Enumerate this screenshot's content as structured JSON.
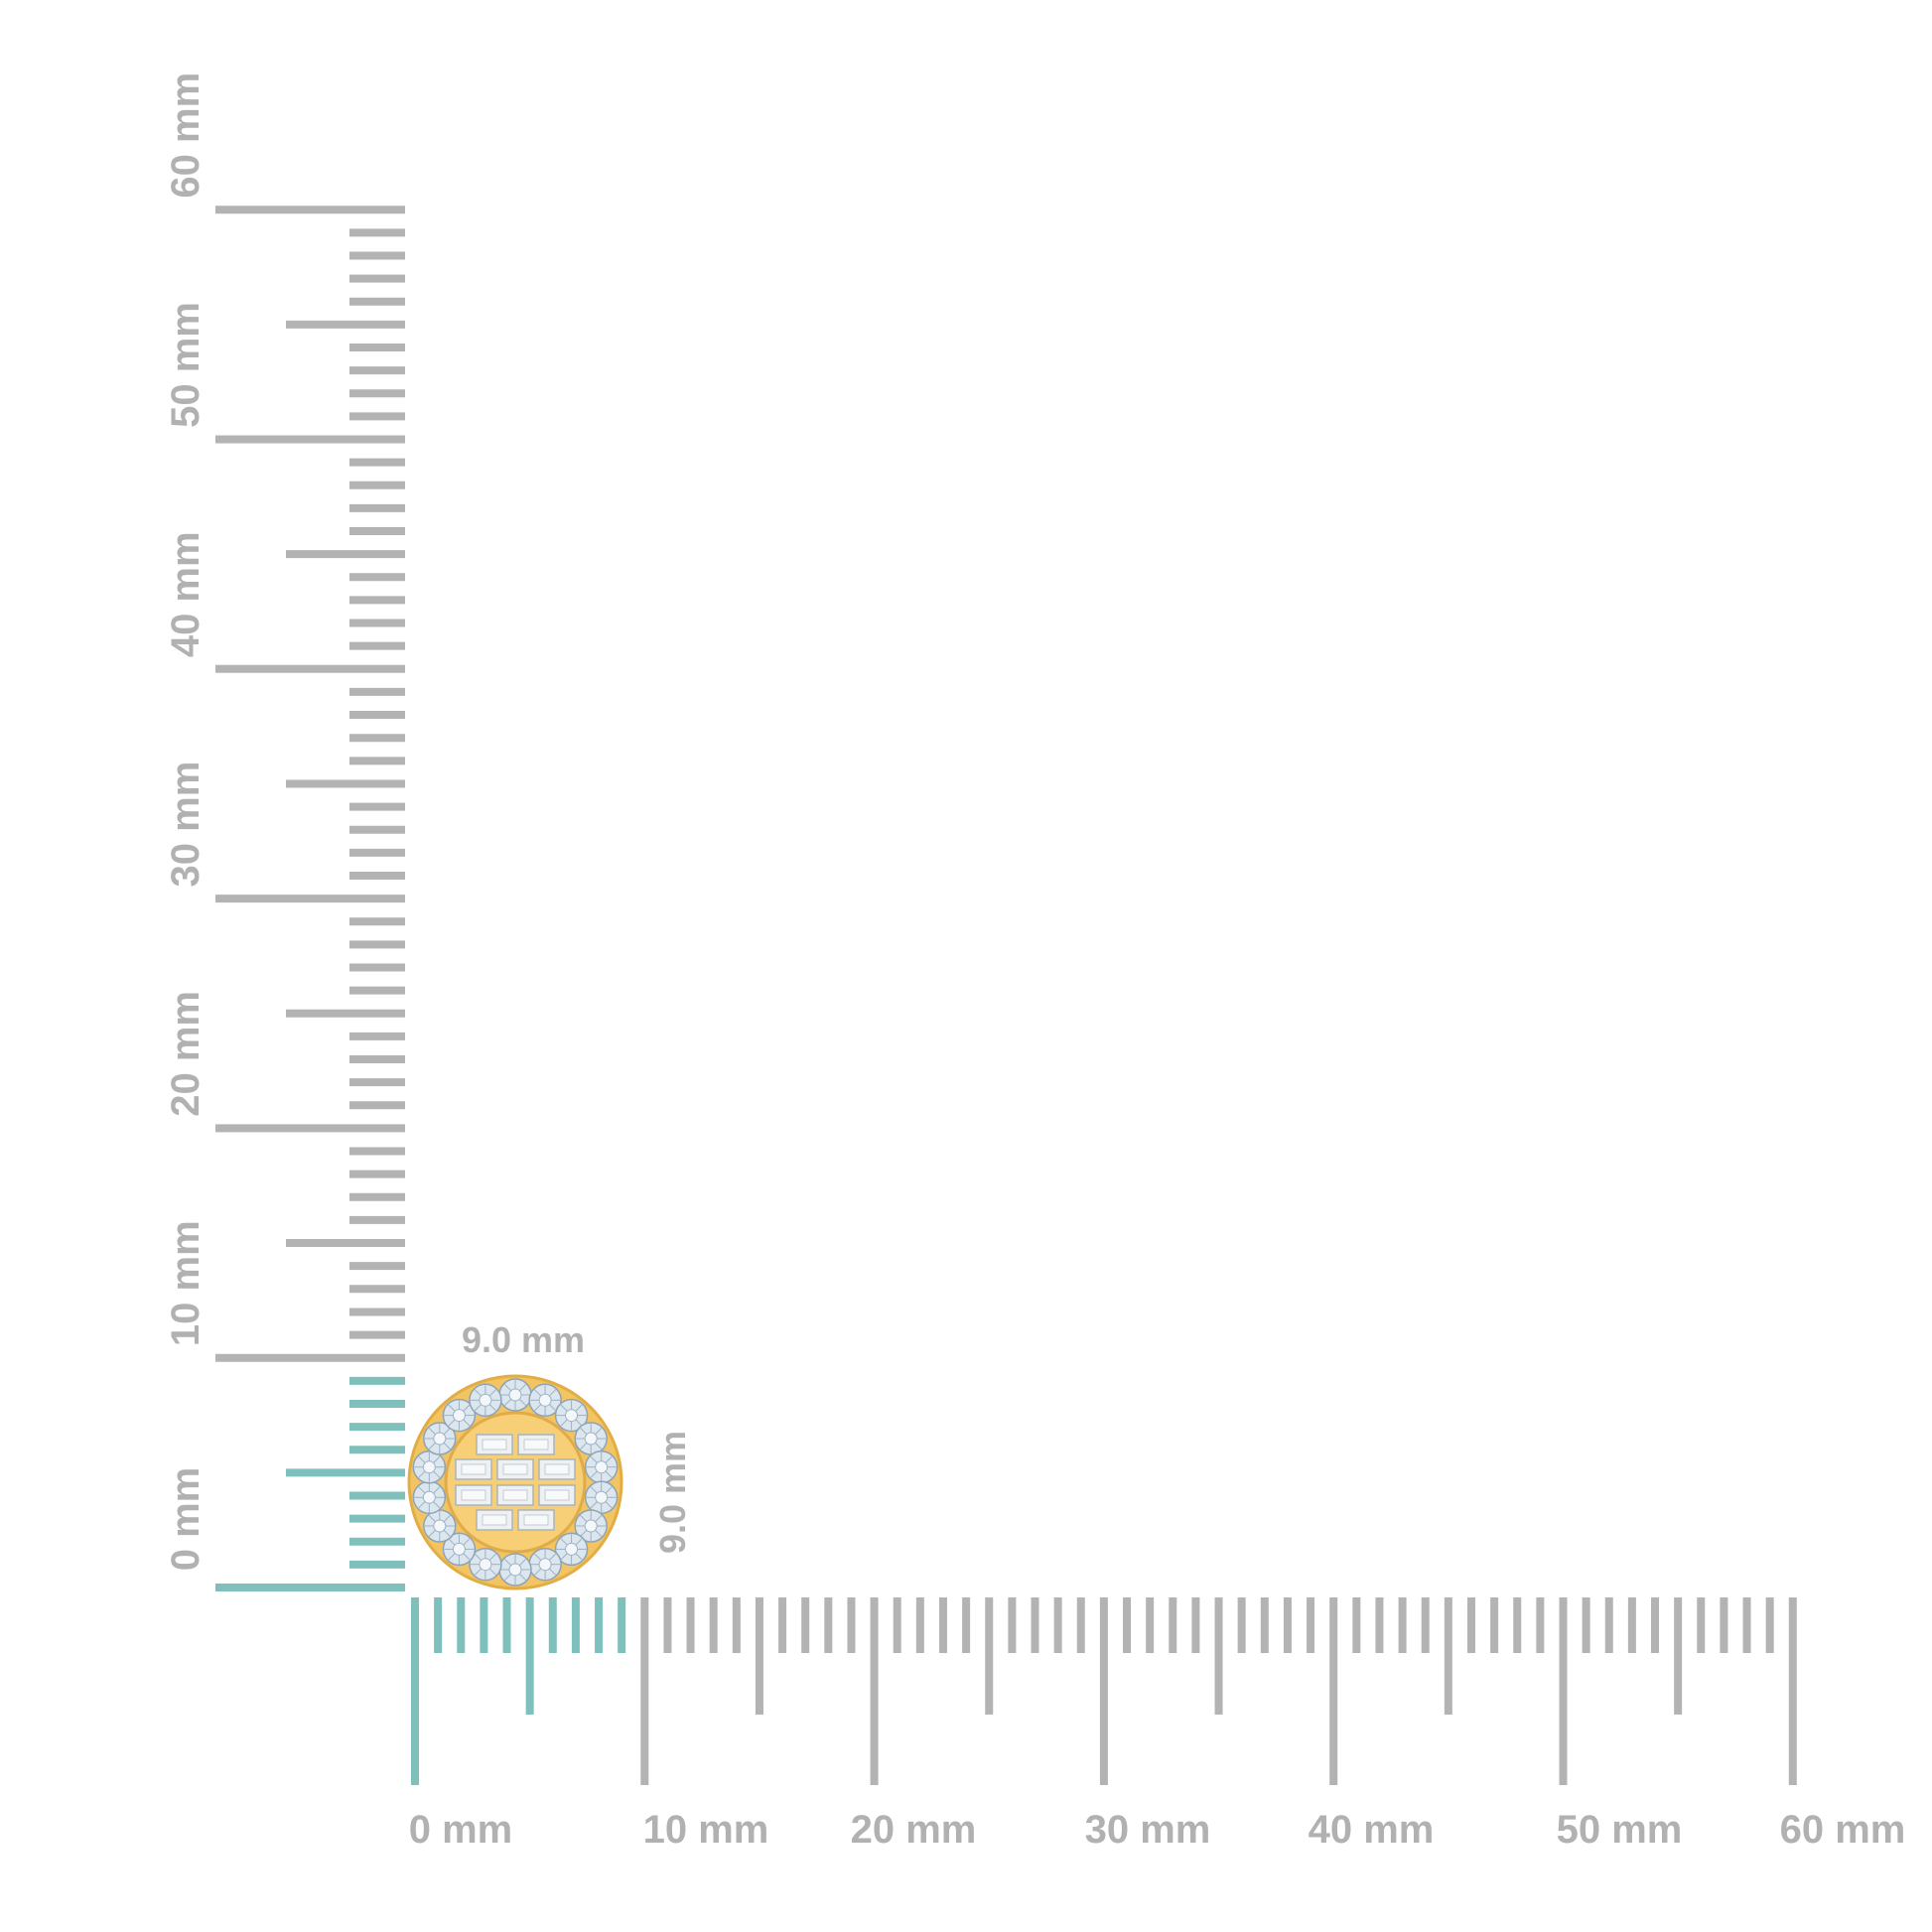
{
  "colors": {
    "ruler": "#b3b3b3",
    "highlight": "#80c0bc",
    "label": "#b1b1b1",
    "gold": "#f2c462",
    "diamond": "#dce6ee"
  },
  "x_axis": {
    "labels": [
      "0 mm",
      "10 mm",
      "20 mm",
      "30 mm",
      "40 mm",
      "50 mm",
      "60 mm"
    ],
    "range_mm": [
      0,
      60
    ]
  },
  "y_axis": {
    "labels": [
      "0 mm",
      "10 mm",
      "20 mm",
      "30 mm",
      "40 mm",
      "50 mm",
      "60 mm"
    ],
    "range_mm": [
      0,
      60
    ]
  },
  "item": {
    "width_mm": 9.0,
    "height_mm": 9.0,
    "width_label": "9.0 mm",
    "height_label": "9.0 mm",
    "round_stones": 18,
    "baguette_stones": 10,
    "icon": "round-halo-baguette-earring"
  }
}
